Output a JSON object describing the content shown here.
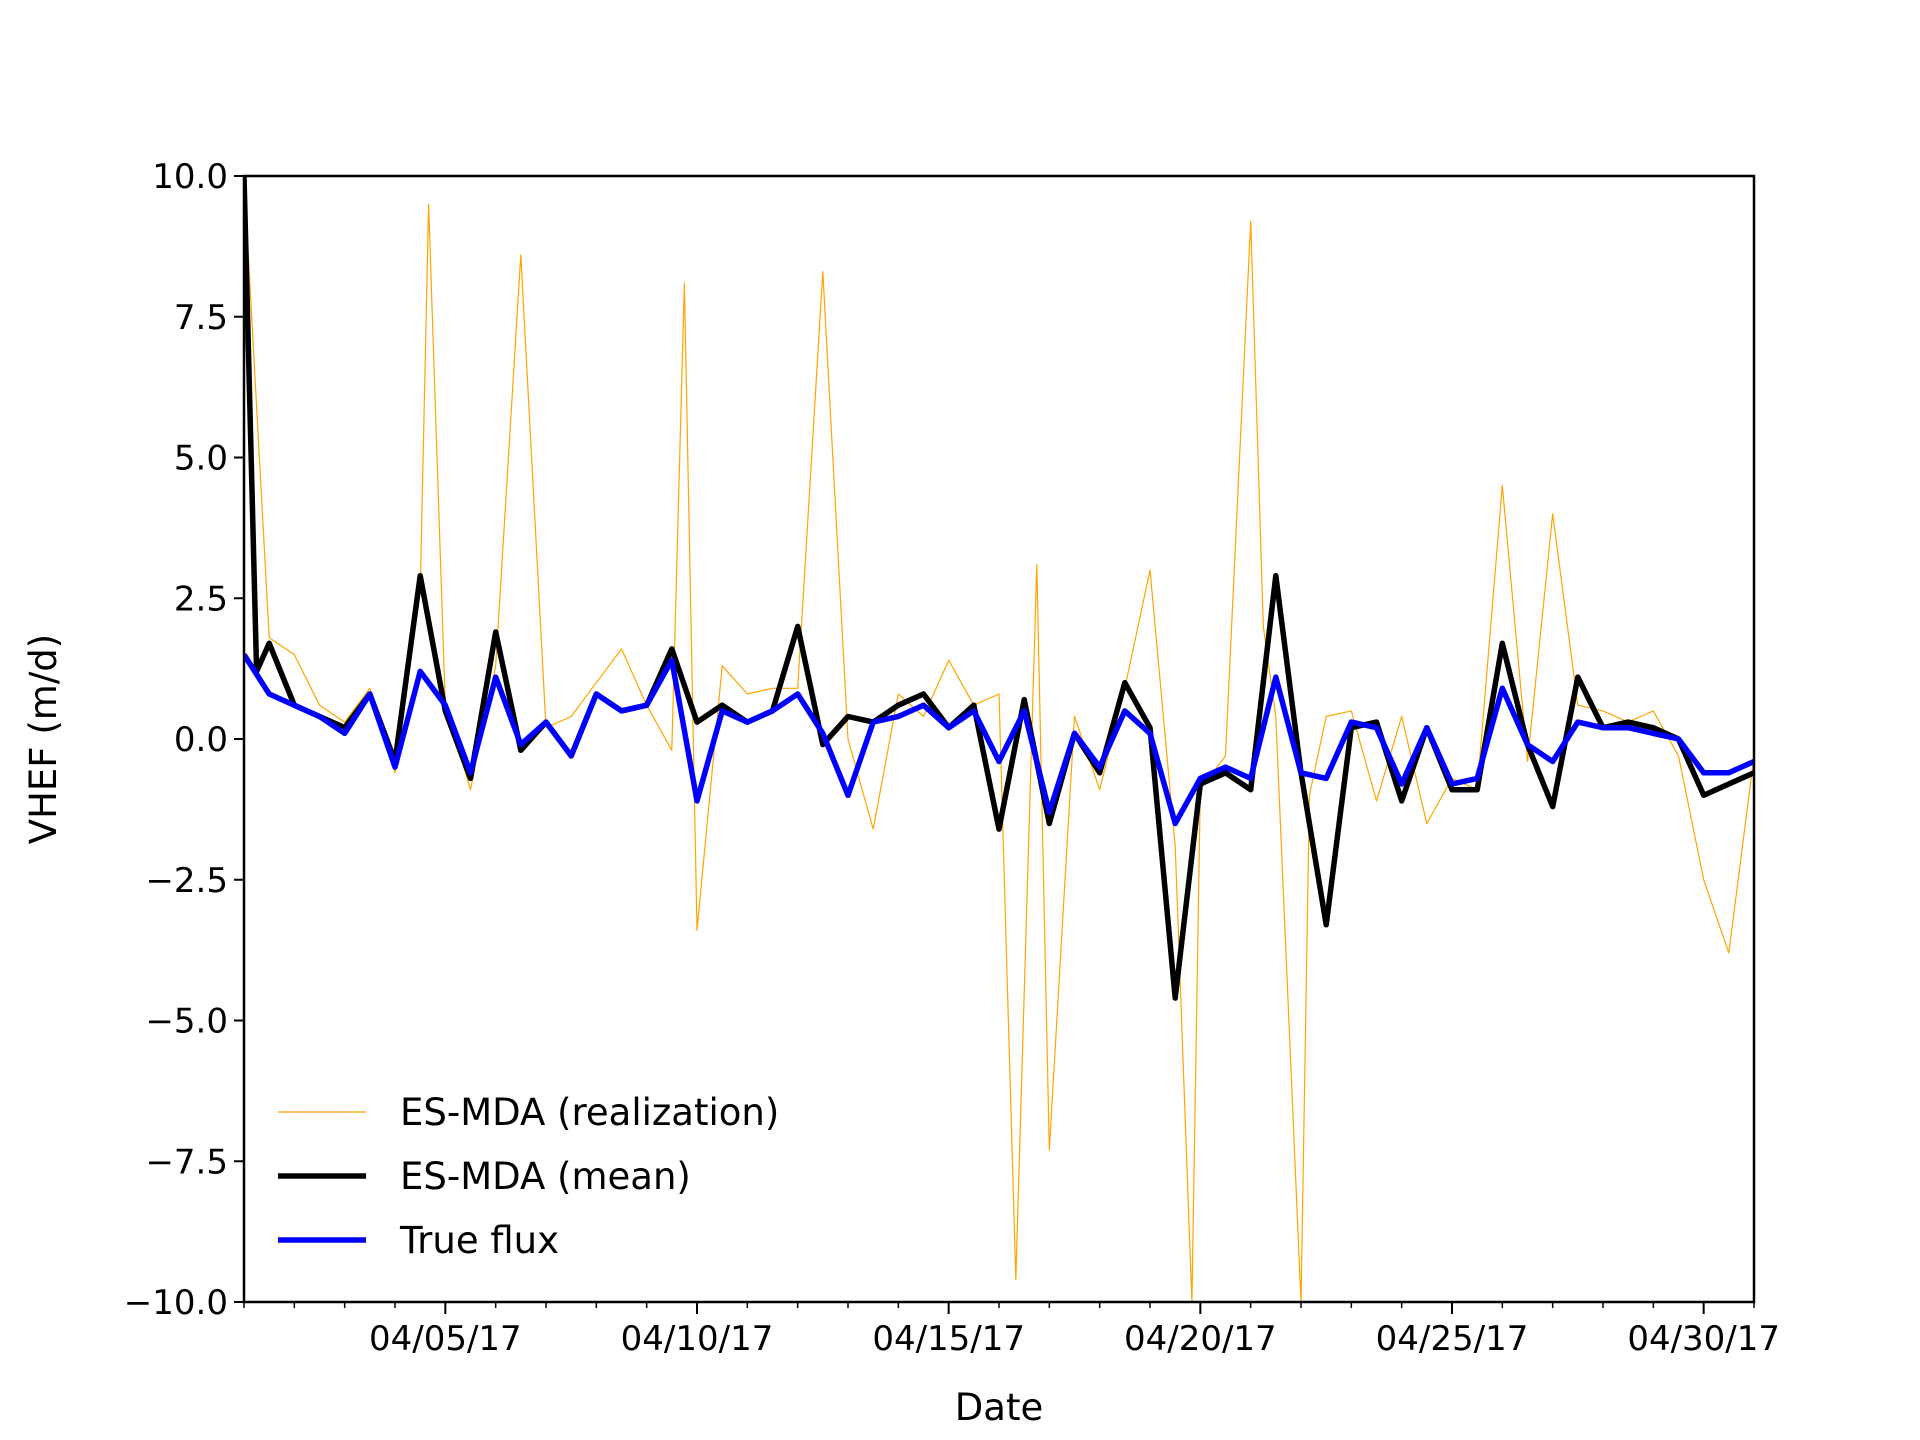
{
  "chart_data": {
    "type": "line",
    "title": "",
    "xlabel": "Date",
    "ylabel": "VHEF (m/d)",
    "xlim": [
      "2017-04-01",
      "2017-05-01"
    ],
    "ylim": [
      -10,
      10
    ],
    "x_ticks": [
      {
        "date": "2017-04-05",
        "label": "04/05/17"
      },
      {
        "date": "2017-04-10",
        "label": "04/10/17"
      },
      {
        "date": "2017-04-15",
        "label": "04/15/17"
      },
      {
        "date": "2017-04-20",
        "label": "04/20/17"
      },
      {
        "date": "2017-04-25",
        "label": "04/25/17"
      },
      {
        "date": "2017-04-30",
        "label": "04/30/17"
      }
    ],
    "y_ticks": [
      {
        "value": 10,
        "label": "10.0"
      },
      {
        "value": 7.5,
        "label": "7.5"
      },
      {
        "value": 5,
        "label": "5.0"
      },
      {
        "value": 2.5,
        "label": "2.5"
      },
      {
        "value": 0,
        "label": "0.0"
      },
      {
        "value": -2.5,
        "label": "−2.5"
      },
      {
        "value": -5,
        "label": "−5.0"
      },
      {
        "value": -7.5,
        "label": "−7.5"
      },
      {
        "value": -10,
        "label": "−10.0"
      }
    ],
    "grid": false,
    "legend_position": "lower-left",
    "series": [
      {
        "name": "ES-MDA (realization)",
        "color": "#ffa500",
        "style": "thin",
        "x": [
          "2017-04-01",
          "2017-04-01T12:00",
          "2017-04-02",
          "2017-04-02T12:00",
          "2017-04-03",
          "2017-04-03T12:00",
          "2017-04-04",
          "2017-04-04T12:00",
          "2017-04-04T16:00",
          "2017-04-05",
          "2017-04-05T12:00",
          "2017-04-06",
          "2017-04-06T12:00",
          "2017-04-07",
          "2017-04-07T12:00",
          "2017-04-08",
          "2017-04-08T12:00",
          "2017-04-09",
          "2017-04-09T12:00",
          "2017-04-09T18:00",
          "2017-04-10",
          "2017-04-10T12:00",
          "2017-04-11",
          "2017-04-11T12:00",
          "2017-04-12",
          "2017-04-12T12:00",
          "2017-04-13",
          "2017-04-13T12:00",
          "2017-04-14",
          "2017-04-14T12:00",
          "2017-04-15",
          "2017-04-15T12:00",
          "2017-04-16",
          "2017-04-16T08:00",
          "2017-04-16T18:00",
          "2017-04-17",
          "2017-04-17T12:00",
          "2017-04-18",
          "2017-04-18T12:00",
          "2017-04-19",
          "2017-04-19T12:00",
          "2017-04-19T20:00",
          "2017-04-20",
          "2017-04-20T12:00",
          "2017-04-21",
          "2017-04-21T06:00",
          "2017-04-21T12:00",
          "2017-04-22",
          "2017-04-22T04:00",
          "2017-04-22T12:00",
          "2017-04-23",
          "2017-04-23T12:00",
          "2017-04-24",
          "2017-04-24T12:00",
          "2017-04-25",
          "2017-04-25T12:00",
          "2017-04-26",
          "2017-04-26T12:00",
          "2017-04-27",
          "2017-04-27T12:00",
          "2017-04-28",
          "2017-04-28T12:00",
          "2017-04-29",
          "2017-04-29T12:00",
          "2017-04-30",
          "2017-04-30T12:00",
          "2017-05-01"
        ],
        "values": [
          10.0,
          1.8,
          1.5,
          0.6,
          0.3,
          0.9,
          -0.6,
          2.6,
          9.5,
          0.6,
          -0.9,
          1.3,
          8.6,
          0.2,
          0.4,
          1.0,
          1.6,
          0.6,
          -0.2,
          8.1,
          -3.4,
          1.3,
          0.8,
          0.9,
          0.9,
          8.3,
          0.0,
          -1.6,
          0.8,
          0.4,
          1.4,
          0.6,
          0.8,
          -9.6,
          3.1,
          -7.3,
          0.4,
          -0.9,
          0.9,
          3.0,
          -1.9,
          -10.0,
          -0.9,
          -0.3,
          9.2,
          2.0,
          0.4,
          -10.0,
          -1.0,
          0.4,
          0.5,
          -1.1,
          0.4,
          -1.5,
          -0.7,
          -0.9,
          4.5,
          -0.4,
          4.0,
          0.6,
          0.5,
          0.3,
          0.5,
          -0.3,
          -2.5,
          -3.8,
          -0.3
        ]
      },
      {
        "name": "ES-MDA (mean)",
        "color": "#000000",
        "style": "thick",
        "x": [
          "2017-04-01",
          "2017-04-01T06:00",
          "2017-04-01T12:00",
          "2017-04-02",
          "2017-04-02T12:00",
          "2017-04-03",
          "2017-04-03T12:00",
          "2017-04-04",
          "2017-04-04T12:00",
          "2017-04-05",
          "2017-04-05T12:00",
          "2017-04-06",
          "2017-04-06T12:00",
          "2017-04-07",
          "2017-04-07T12:00",
          "2017-04-08",
          "2017-04-08T12:00",
          "2017-04-09",
          "2017-04-09T12:00",
          "2017-04-10",
          "2017-04-10T12:00",
          "2017-04-11",
          "2017-04-11T12:00",
          "2017-04-12",
          "2017-04-12T12:00",
          "2017-04-13",
          "2017-04-13T12:00",
          "2017-04-14",
          "2017-04-14T12:00",
          "2017-04-15",
          "2017-04-15T12:00",
          "2017-04-16",
          "2017-04-16T12:00",
          "2017-04-17",
          "2017-04-17T12:00",
          "2017-04-18",
          "2017-04-18T12:00",
          "2017-04-19",
          "2017-04-19T12:00",
          "2017-04-20",
          "2017-04-20T12:00",
          "2017-04-21",
          "2017-04-21T12:00",
          "2017-04-22",
          "2017-04-22T12:00",
          "2017-04-23",
          "2017-04-23T12:00",
          "2017-04-24",
          "2017-04-24T12:00",
          "2017-04-25",
          "2017-04-25T12:00",
          "2017-04-26",
          "2017-04-26T12:00",
          "2017-04-27",
          "2017-04-27T12:00",
          "2017-04-28",
          "2017-04-28T12:00",
          "2017-04-29",
          "2017-04-29T12:00",
          "2017-04-30",
          "2017-04-30T12:00",
          "2017-05-01"
        ],
        "values": [
          10.0,
          1.2,
          1.7,
          0.6,
          0.4,
          0.2,
          0.8,
          -0.4,
          2.9,
          0.5,
          -0.7,
          1.9,
          -0.2,
          0.3,
          -0.3,
          0.8,
          0.5,
          0.6,
          1.6,
          0.3,
          0.6,
          0.3,
          0.5,
          2.0,
          -0.1,
          0.4,
          0.3,
          0.6,
          0.8,
          0.2,
          0.6,
          -1.6,
          0.7,
          -1.5,
          0.1,
          -0.6,
          1.0,
          0.2,
          -4.6,
          -0.8,
          -0.6,
          -0.9,
          2.9,
          -0.6,
          -3.3,
          0.2,
          0.3,
          -1.1,
          0.2,
          -0.9,
          -0.9,
          1.7,
          -0.1,
          -1.2,
          1.1,
          0.2,
          0.3,
          0.2,
          0.0,
          -1.0,
          -0.8,
          -0.6
        ]
      },
      {
        "name": "True flux",
        "color": "#0000ff",
        "style": "thick",
        "x": [
          "2017-04-01",
          "2017-04-01T12:00",
          "2017-04-02",
          "2017-04-02T12:00",
          "2017-04-03",
          "2017-04-03T12:00",
          "2017-04-04",
          "2017-04-04T12:00",
          "2017-04-05",
          "2017-04-05T12:00",
          "2017-04-06",
          "2017-04-06T12:00",
          "2017-04-07",
          "2017-04-07T12:00",
          "2017-04-08",
          "2017-04-08T12:00",
          "2017-04-09",
          "2017-04-09T12:00",
          "2017-04-10",
          "2017-04-10T12:00",
          "2017-04-11",
          "2017-04-11T12:00",
          "2017-04-12",
          "2017-04-12T12:00",
          "2017-04-13",
          "2017-04-13T12:00",
          "2017-04-14",
          "2017-04-14T12:00",
          "2017-04-15",
          "2017-04-15T12:00",
          "2017-04-16",
          "2017-04-16T12:00",
          "2017-04-17",
          "2017-04-17T12:00",
          "2017-04-18",
          "2017-04-18T12:00",
          "2017-04-19",
          "2017-04-19T12:00",
          "2017-04-20",
          "2017-04-20T12:00",
          "2017-04-21",
          "2017-04-21T12:00",
          "2017-04-22",
          "2017-04-22T12:00",
          "2017-04-23",
          "2017-04-23T12:00",
          "2017-04-24",
          "2017-04-24T12:00",
          "2017-04-25",
          "2017-04-25T12:00",
          "2017-04-26",
          "2017-04-26T12:00",
          "2017-04-27",
          "2017-04-27T12:00",
          "2017-04-28",
          "2017-04-28T12:00",
          "2017-04-29",
          "2017-04-29T12:00",
          "2017-04-30",
          "2017-04-30T12:00",
          "2017-05-01"
        ],
        "values": [
          1.5,
          0.8,
          0.6,
          0.4,
          0.1,
          0.8,
          -0.5,
          1.2,
          0.6,
          -0.6,
          1.1,
          -0.1,
          0.3,
          -0.3,
          0.8,
          0.5,
          0.6,
          1.4,
          -1.1,
          0.5,
          0.3,
          0.5,
          0.8,
          0.1,
          -1.0,
          0.3,
          0.4,
          0.6,
          0.2,
          0.5,
          -0.4,
          0.5,
          -1.3,
          0.1,
          -0.5,
          0.5,
          0.1,
          -1.5,
          -0.7,
          -0.5,
          -0.7,
          1.1,
          -0.6,
          -0.7,
          0.3,
          0.2,
          -0.8,
          0.2,
          -0.8,
          -0.7,
          0.9,
          -0.1,
          -0.4,
          0.3,
          0.2,
          0.2,
          0.1,
          0.0,
          -0.6,
          -0.6,
          -0.4
        ]
      }
    ]
  }
}
